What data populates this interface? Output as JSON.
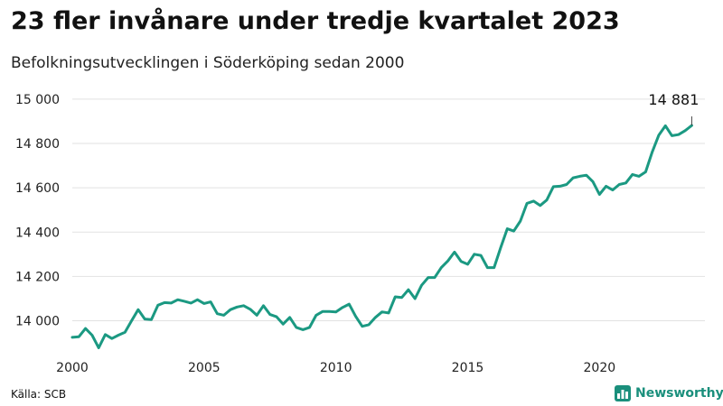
{
  "title": "23 fler invånare under tredje kvartalet 2023",
  "subtitle": "Befolkningsutvecklingen i Söderköping sedan 2000",
  "source": "Källa: SCB",
  "brand": {
    "name": "Newsworthy",
    "icon": "bar-chart-logo-icon"
  },
  "colors": {
    "line": "#1b9982",
    "grid": "#e2e2e2",
    "brand": "#1a8f7c"
  },
  "chart_data": {
    "type": "line",
    "title": "23 fler invånare under tredje kvartalet 2023",
    "subtitle": "Befolkningsutvecklingen i Söderköping sedan 2000",
    "xlabel": "",
    "ylabel": "",
    "xlim": [
      2000,
      2024
    ],
    "ylim": [
      13880,
      15020
    ],
    "x_ticks": [
      {
        "value": 2000,
        "label": "2000"
      },
      {
        "value": 2005,
        "label": "2005"
      },
      {
        "value": 2010,
        "label": "2010"
      },
      {
        "value": 2015,
        "label": "2015"
      },
      {
        "value": 2020,
        "label": "2020"
      }
    ],
    "y_ticks": [
      {
        "value": 14000,
        "label": "14 000"
      },
      {
        "value": 14200,
        "label": "14 200"
      },
      {
        "value": 14400,
        "label": "14 400"
      },
      {
        "value": 14600,
        "label": "14 600"
      },
      {
        "value": 14800,
        "label": "14 800"
      },
      {
        "value": 15000,
        "label": "15 000"
      }
    ],
    "grid": true,
    "annotation": {
      "x": 2023.5,
      "y": 14881,
      "label": "14 881"
    },
    "series": [
      {
        "x": [
          2000.0,
          2000.25,
          2000.5,
          2000.75,
          2001.0,
          2001.25,
          2001.5,
          2001.75,
          2002.0,
          2002.25,
          2002.5,
          2002.75,
          2003.0,
          2003.25,
          2003.5,
          2003.75,
          2004.0,
          2004.25,
          2004.5,
          2004.75,
          2005.0,
          2005.25,
          2005.5,
          2005.75,
          2006.0,
          2006.25,
          2006.5,
          2006.75,
          2007.0,
          2007.25,
          2007.5,
          2007.75,
          2008.0,
          2008.25,
          2008.5,
          2008.75,
          2009.0,
          2009.25,
          2009.5,
          2009.75,
          2010.0,
          2010.25,
          2010.5,
          2010.75,
          2011.0,
          2011.25,
          2011.5,
          2011.75,
          2012.0,
          2012.25,
          2012.5,
          2012.75,
          2013.0,
          2013.25,
          2013.5,
          2013.75,
          2014.0,
          2014.25,
          2014.5,
          2014.75,
          2015.0,
          2015.25,
          2015.5,
          2015.75,
          2016.0,
          2016.25,
          2016.5,
          2016.75,
          2017.0,
          2017.25,
          2017.5,
          2017.75,
          2018.0,
          2018.25,
          2018.5,
          2018.75,
          2019.0,
          2019.25,
          2019.5,
          2019.75,
          2020.0,
          2020.25,
          2020.5,
          2020.75,
          2021.0,
          2021.25,
          2021.5,
          2021.75,
          2022.0,
          2022.25,
          2022.5,
          2022.75,
          2023.0,
          2023.25,
          2023.5
        ],
        "values": [
          13925,
          13928,
          13965,
          13935,
          13878,
          13938,
          13920,
          13935,
          13948,
          14000,
          14050,
          14008,
          14005,
          14070,
          14082,
          14080,
          14095,
          14088,
          14080,
          14095,
          14078,
          14085,
          14032,
          14025,
          14050,
          14062,
          14068,
          14052,
          14025,
          14068,
          14028,
          14018,
          13985,
          14015,
          13970,
          13960,
          13970,
          14025,
          14042,
          14042,
          14040,
          14060,
          14075,
          14020,
          13975,
          13982,
          14015,
          14040,
          14035,
          14108,
          14105,
          14140,
          14100,
          14160,
          14195,
          14195,
          14240,
          14270,
          14310,
          14268,
          14255,
          14300,
          14295,
          14240,
          14240,
          14330,
          14415,
          14405,
          14450,
          14530,
          14540,
          14520,
          14545,
          14605,
          14607,
          14615,
          14645,
          14652,
          14657,
          14628,
          14570,
          14607,
          14590,
          14615,
          14622,
          14660,
          14652,
          14672,
          14762,
          14838,
          14880,
          14835,
          14840,
          14858,
          14881
        ]
      }
    ]
  }
}
